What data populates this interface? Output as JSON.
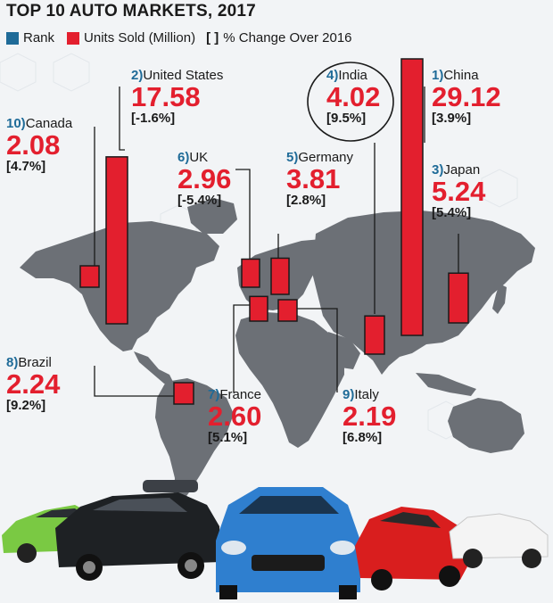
{
  "title": "TOP 10 AUTO MARKETS, 2017",
  "legend": {
    "rank": "Rank",
    "units": "Units Sold (Million)",
    "change_bracket": "[ ]",
    "change": "% Change Over 2016"
  },
  "colors": {
    "rank": "#1f6b98",
    "units": "#e31f2e",
    "map": "#6c7076",
    "text": "#1a1a1a"
  },
  "chart_data": {
    "type": "bar",
    "title": "TOP 10 AUTO MARKETS, 2017",
    "categories": [
      "China",
      "United States",
      "Japan",
      "India",
      "Germany",
      "UK",
      "France",
      "Brazil",
      "Italy",
      "Canada"
    ],
    "series": [
      {
        "name": "Units Sold (Million)",
        "values": [
          29.12,
          17.58,
          5.24,
          4.02,
          3.81,
          2.96,
          2.6,
          2.24,
          2.19,
          2.08
        ]
      }
    ],
    "markets": [
      {
        "rank": "1)",
        "country": "China",
        "units": "29.12",
        "change": "[3.9%]"
      },
      {
        "rank": "2)",
        "country": "United States",
        "units": "17.58",
        "change": "[-1.6%]"
      },
      {
        "rank": "3)",
        "country": "Japan",
        "units": "5.24",
        "change": "[5.4%]"
      },
      {
        "rank": "4)",
        "country": "India",
        "units": "4.02",
        "change": "[9.5%]"
      },
      {
        "rank": "5)",
        "country": "Germany",
        "units": "3.81",
        "change": "[2.8%]"
      },
      {
        "rank": "6)",
        "country": "UK",
        "units": "2.96",
        "change": "[-5.4%]"
      },
      {
        "rank": "7)",
        "country": "France",
        "units": "2.60",
        "change": "[5.1%]"
      },
      {
        "rank": "8)",
        "country": "Brazil",
        "units": "2.24",
        "change": "[9.2%]"
      },
      {
        "rank": "9)",
        "country": "Italy",
        "units": "2.19",
        "change": "[6.8%]"
      },
      {
        "rank": "10)",
        "country": "Canada",
        "units": "2.08",
        "change": "[4.7%]"
      }
    ]
  }
}
